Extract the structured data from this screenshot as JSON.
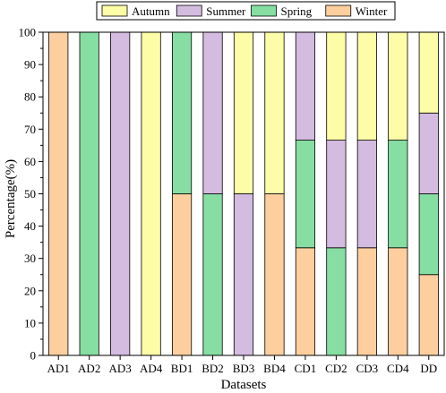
{
  "chart_data": {
    "type": "bar",
    "stacked": true,
    "title": "",
    "xlabel": "Datasets",
    "ylabel": "Percentage(%)",
    "ylim": [
      0,
      100
    ],
    "yticks": [
      0,
      10,
      20,
      30,
      40,
      50,
      60,
      70,
      80,
      90,
      100
    ],
    "grid": false,
    "legend_position": "top",
    "categories": [
      "AD1",
      "AD2",
      "AD3",
      "AD4",
      "BD1",
      "BD2",
      "BD3",
      "BD4",
      "CD1",
      "CD2",
      "CD3",
      "CD4",
      "DD"
    ],
    "series": [
      {
        "name": "Winter",
        "color": "#FDCF9E",
        "values": [
          100,
          0,
          0,
          0,
          50,
          0,
          0,
          50,
          33.3,
          0,
          33.3,
          33.3,
          25
        ]
      },
      {
        "name": "Spring",
        "color": "#86DEA2",
        "values": [
          0,
          100,
          0,
          0,
          50,
          50,
          0,
          0,
          33.3,
          33.3,
          0,
          33.3,
          25
        ]
      },
      {
        "name": "Summer",
        "color": "#D4BBE0",
        "values": [
          0,
          0,
          100,
          0,
          0,
          50,
          50,
          0,
          33.4,
          33.3,
          33.3,
          0,
          25
        ]
      },
      {
        "name": "Autumn",
        "color": "#FDFDA7",
        "values": [
          0,
          0,
          0,
          100,
          0,
          0,
          50,
          50,
          0,
          33.4,
          33.4,
          33.4,
          25
        ]
      }
    ],
    "legend_order": [
      "Autumn",
      "Summer",
      "Spring",
      "Winter"
    ]
  }
}
